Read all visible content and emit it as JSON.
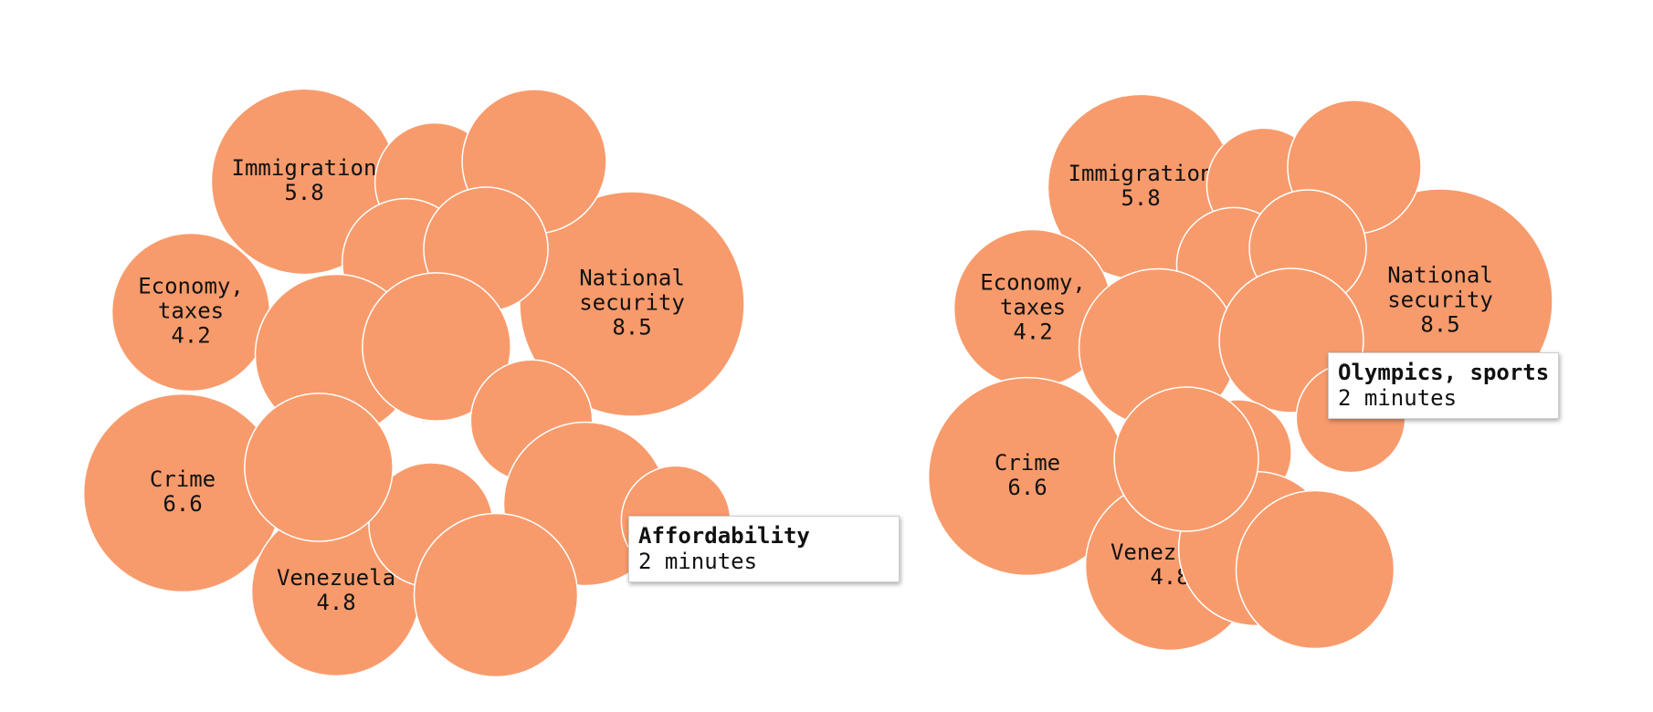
{
  "colors": {
    "bubble": "#f89b6c",
    "bubble_stroke": "#ffffff",
    "text": "#111111"
  },
  "chart_data": [
    {
      "type": "bubble",
      "unit": "minutes",
      "bubbles": [
        {
          "label": "Immigration",
          "value": 5.8,
          "show_label": true
        },
        {
          "label": "Economy, taxes",
          "value": 4.2,
          "show_label": true
        },
        {
          "label": "National security",
          "value": 8.5,
          "show_label": true
        },
        {
          "label": "Crime",
          "value": 6.6,
          "show_label": true
        },
        {
          "label": "Venezuela",
          "value": 4.8,
          "show_label": true
        },
        {
          "label": "",
          "value": 2.4
        },
        {
          "label": "",
          "value": 3.5
        },
        {
          "label": "",
          "value": 2.7
        },
        {
          "label": "",
          "value": 2.6
        },
        {
          "label": "",
          "value": 4.4
        },
        {
          "label": "",
          "value": 3.7
        },
        {
          "label": "",
          "value": 2.5
        },
        {
          "label": "",
          "value": 2.6
        },
        {
          "label": "",
          "value": 4.5
        },
        {
          "label": "Affordability",
          "value": 2.0
        },
        {
          "label": "",
          "value": 3.7
        },
        {
          "label": "",
          "value": 4.5
        }
      ],
      "tooltip": {
        "title": "Affordability",
        "detail": "2 minutes"
      }
    },
    {
      "type": "bubble",
      "unit": "minutes",
      "bubbles": [
        {
          "label": "Immigration",
          "value": 5.8,
          "show_label": true
        },
        {
          "label": "Economy, taxes",
          "value": 4.2,
          "show_label": true
        },
        {
          "label": "National security",
          "value": 8.5,
          "show_label": true
        },
        {
          "label": "Crime",
          "value": 6.6,
          "show_label": true
        },
        {
          "label": "Venezuela",
          "value": 4.8,
          "show_label": true
        },
        {
          "label": "",
          "value": 2.2
        },
        {
          "label": "",
          "value": 3.0
        },
        {
          "label": "",
          "value": 2.2
        },
        {
          "label": "",
          "value": 2.3
        },
        {
          "label": "",
          "value": 4.2
        },
        {
          "label": "",
          "value": 3.5
        },
        {
          "label": "Olympics, sports",
          "value": 2.0
        },
        {
          "label": "",
          "value": 1.9
        },
        {
          "label": "",
          "value": 4.0
        },
        {
          "label": "",
          "value": 3.5
        },
        {
          "label": "",
          "value": 4.2
        }
      ],
      "tooltip": {
        "title": "Olympics, sports",
        "detail": "2 minutes"
      }
    }
  ]
}
